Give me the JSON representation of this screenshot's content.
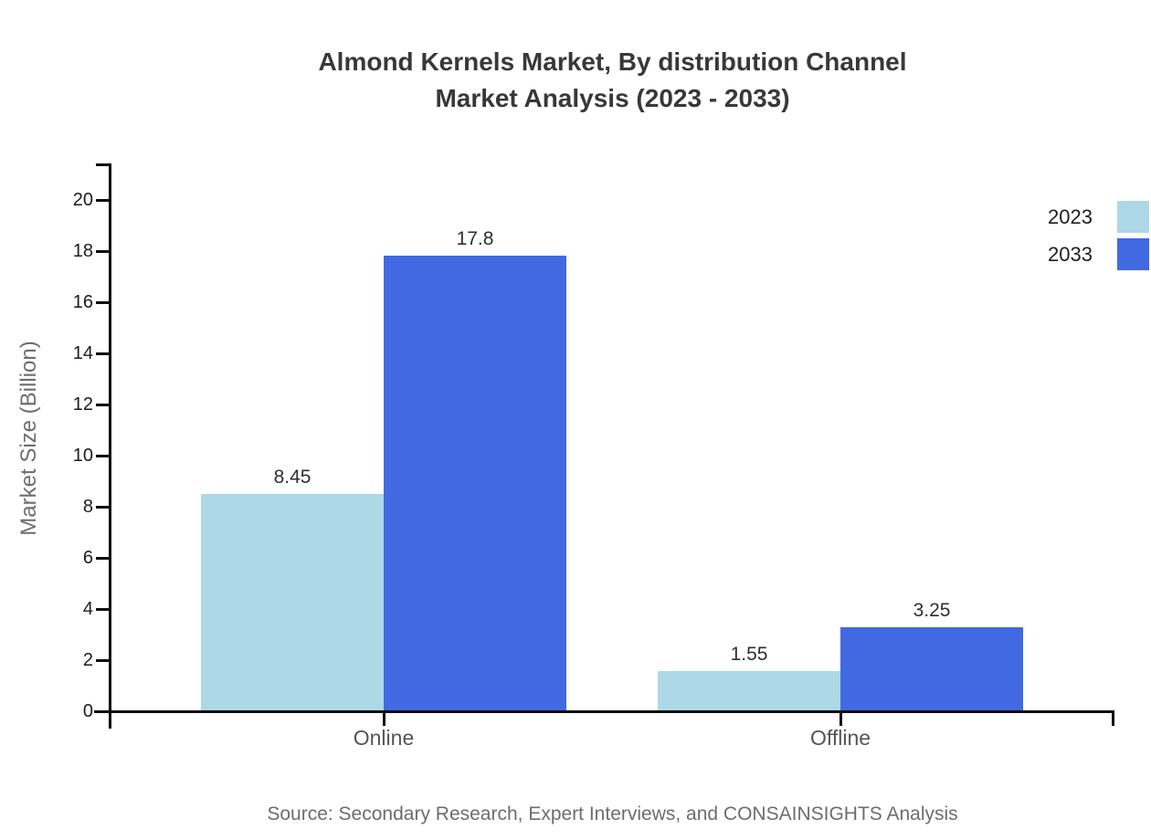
{
  "title": {
    "line1": "Almond Kernels Market, By distribution Channel",
    "line2": "Market Analysis (2023 - 2033)"
  },
  "source": "Source: Secondary Research, Expert Interviews, and CONSAINSIGHTS Analysis",
  "chart_data": {
    "type": "bar",
    "title": "Almond Kernels Market, By distribution Channel Market Analysis (2023 - 2033)",
    "categories": [
      "Online",
      "Offline"
    ],
    "series": [
      {
        "name": "2023",
        "color": "#add8e6",
        "values": [
          8.45,
          1.55
        ]
      },
      {
        "name": "2033",
        "color": "#4169e1",
        "values": [
          17.8,
          3.25
        ]
      }
    ],
    "value_labels": [
      [
        "8.45",
        "1.55"
      ],
      [
        "17.8",
        "3.25"
      ]
    ],
    "xlabel": "",
    "ylabel": "Market Size (Billion)",
    "ylim": [
      0,
      20
    ],
    "yticks": [
      0,
      2,
      4,
      6,
      8,
      10,
      12,
      14,
      16,
      18,
      20
    ],
    "grid": false,
    "legend_position": "top-right",
    "axis_color": "#0d0d0d",
    "background_color": "#ffffff"
  }
}
